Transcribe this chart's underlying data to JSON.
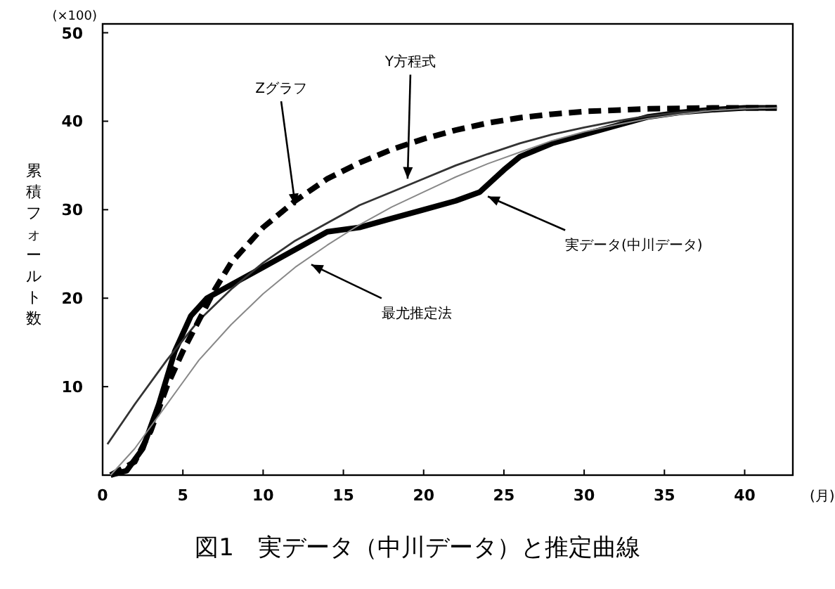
{
  "chart_data": {
    "type": "line",
    "title": "図1　実データ（中川データ）と推定曲線",
    "xlabel": "(月)",
    "ylabel": "累積フォールト数",
    "xlim": [
      0,
      43
    ],
    "ylim": [
      0,
      51
    ],
    "xticks": [
      0,
      5,
      10,
      15,
      20,
      25,
      30,
      35,
      40
    ],
    "yticks": [
      10,
      20,
      30,
      40,
      50
    ],
    "grid": false,
    "annotations": [
      "(×100)",
      {
        "text": "Y方程式",
        "x": 19,
        "y": 33.5
      },
      {
        "text": "Zグラフ",
        "x": 12,
        "y": 30.5
      },
      {
        "text": "実データ(中川データ)",
        "x": 24,
        "y": 31.5
      },
      {
        "text": "最尤推定法",
        "x": 13,
        "y": 23.8
      }
    ],
    "series": [
      {
        "color": "#000000",
        "line_style": "solid",
        "x": [
          0.5,
          1.5,
          2.5,
          3.5,
          4.5,
          5.5,
          6.5,
          8,
          10,
          12,
          14,
          16,
          18,
          20,
          22,
          23.5,
          25,
          26,
          28,
          30,
          32,
          34,
          36,
          38,
          40,
          42
        ],
        "values": [
          0,
          0.5,
          3,
          8,
          14,
          18,
          20,
          21.5,
          23.5,
          25.5,
          27.5,
          28,
          29,
          30,
          31,
          32,
          34.5,
          36,
          37.5,
          38.5,
          39.5,
          40.5,
          41,
          41.3,
          41.5,
          41.5
        ]
      },
      {
        "color": "#333333",
        "line_style": "solid",
        "x": [
          0.3,
          2,
          4,
          6,
          8,
          10,
          12,
          14,
          16,
          18,
          20,
          22,
          24,
          26,
          28,
          30,
          32,
          34,
          36,
          38,
          40,
          42
        ],
        "values": [
          3.5,
          8,
          13,
          17.5,
          21,
          24,
          26.5,
          28.5,
          30.5,
          32,
          33.5,
          35,
          36.3,
          37.5,
          38.5,
          39.3,
          40,
          40.6,
          41,
          41.3,
          41.5,
          41.6
        ]
      },
      {
        "color": "#000000",
        "line_style": "dashed",
        "x": [
          0.5,
          2,
          3,
          4,
          5,
          6,
          7,
          8,
          10,
          12,
          14,
          16,
          18,
          20,
          22,
          24,
          26,
          28,
          30,
          34,
          38,
          42
        ],
        "values": [
          0,
          1.5,
          5,
          10,
          14,
          17.5,
          21,
          24,
          28,
          31,
          33.5,
          35.3,
          36.8,
          38,
          39,
          39.8,
          40.4,
          40.8,
          41.1,
          41.4,
          41.5,
          41.5
        ]
      },
      {
        "color": "#888888",
        "line_style": "solid",
        "x": [
          0.5,
          2,
          4,
          6,
          8,
          10,
          12,
          14,
          16,
          18,
          20,
          22,
          24,
          26,
          28,
          30,
          32,
          34,
          36,
          38,
          40,
          42
        ],
        "values": [
          0,
          3,
          8,
          13,
          17,
          20.5,
          23.5,
          26,
          28.3,
          30.3,
          32,
          33.7,
          35.2,
          36.5,
          37.8,
          38.8,
          39.6,
          40.3,
          40.8,
          41.2,
          41.4,
          41.5
        ]
      }
    ]
  }
}
